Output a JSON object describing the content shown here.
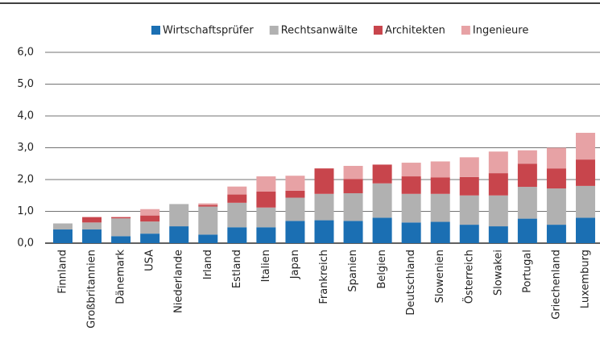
{
  "chart_data": {
    "type": "stacked-bar",
    "categories": [
      "Finnland",
      "Großbritannien",
      "Dänemark",
      "USA",
      "Niederlande",
      "Irland",
      "Estland",
      "Italien",
      "Japan",
      "Frankreich",
      "Spanien",
      "Belgien",
      "Deutschland",
      "Slowenien",
      "Österreich",
      "Slowakei",
      "Portugal",
      "Griechenland",
      "Luxemburg"
    ],
    "series": [
      {
        "name": "Wirtschaftsprüfer",
        "color": "#1b6fb3",
        "values": [
          0.43,
          0.43,
          0.22,
          0.3,
          0.53,
          0.27,
          0.5,
          0.5,
          0.7,
          0.72,
          0.7,
          0.8,
          0.65,
          0.67,
          0.58,
          0.53,
          0.77,
          0.58,
          0.8
        ]
      },
      {
        "name": "Rechtsanwälte",
        "color": "#b1b1b1",
        "values": [
          0.19,
          0.22,
          0.56,
          0.38,
          0.7,
          0.88,
          0.77,
          0.62,
          0.73,
          0.83,
          0.87,
          1.08,
          0.9,
          0.88,
          0.92,
          0.97,
          1.0,
          1.14,
          1.0
        ]
      },
      {
        "name": "Architekten",
        "color": "#c8454c",
        "values": [
          0,
          0.17,
          0.04,
          0.19,
          0,
          0.05,
          0.26,
          0.5,
          0.22,
          0.8,
          0.45,
          0.59,
          0.55,
          0.52,
          0.58,
          0.7,
          0.73,
          0.63,
          0.83
        ]
      },
      {
        "name": "Ingenieure",
        "color": "#e7a2a5",
        "values": [
          0,
          0,
          0,
          0.2,
          0,
          0.05,
          0.25,
          0.48,
          0.47,
          0,
          0.41,
          0,
          0.43,
          0.5,
          0.62,
          0.68,
          0.42,
          0.65,
          0.84
        ]
      }
    ],
    "ylim": [
      0,
      6
    ],
    "yticks": [
      {
        "value": 0,
        "label": "0,0"
      },
      {
        "value": 1,
        "label": "1,0"
      },
      {
        "value": 2,
        "label": "2,0"
      },
      {
        "value": 3,
        "label": "3,0"
      },
      {
        "value": 4,
        "label": "4,0"
      },
      {
        "value": 5,
        "label": "5,0"
      },
      {
        "value": 6,
        "label": "6,0"
      }
    ],
    "grid": true
  }
}
